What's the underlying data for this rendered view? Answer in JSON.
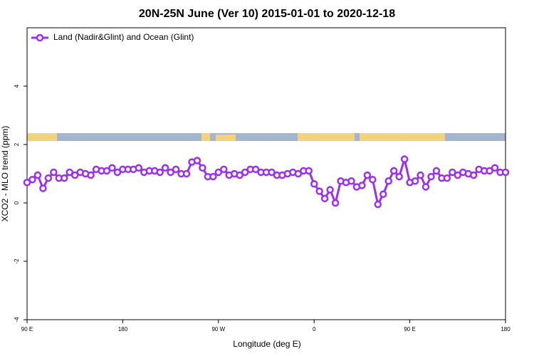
{
  "chart_data": {
    "type": "line",
    "title": "20N-25N June (Ver 10)   2015-01-01 to 2020-12-18",
    "x_label": "Longitude (deg E)",
    "y_label": "XCO2 - MLO trend (ppm)",
    "legend_position": "top-left",
    "x": [
      90,
      95,
      100,
      105,
      110,
      115,
      120,
      125,
      130,
      135,
      140,
      145,
      150,
      155,
      160,
      165,
      170,
      175,
      180,
      185,
      190,
      195,
      200,
      205,
      210,
      215,
      220,
      225,
      230,
      235,
      240,
      245,
      250,
      255,
      260,
      265,
      270,
      275,
      280,
      285,
      290,
      295,
      300,
      305,
      310,
      315,
      320,
      325,
      330,
      335,
      340,
      345,
      350,
      355,
      360,
      365,
      370,
      375,
      380,
      385,
      390,
      395,
      400,
      405,
      410,
      415,
      420,
      425,
      430,
      435,
      440,
      445,
      450,
      455,
      460,
      465,
      470,
      475,
      480,
      485,
      490,
      495,
      500,
      505,
      510,
      515,
      520,
      525,
      530,
      535,
      540
    ],
    "series": [
      {
        "name": "Land (Nadir&Glint) and Ocean (Glint)",
        "color": "#9b30f0",
        "values": [
          0.7,
          0.8,
          0.95,
          0.5,
          0.85,
          1.05,
          0.85,
          0.85,
          1.05,
          0.95,
          1.05,
          1.0,
          0.95,
          1.15,
          1.1,
          1.1,
          1.2,
          1.05,
          1.15,
          1.15,
          1.15,
          1.2,
          1.05,
          1.1,
          1.1,
          1.05,
          1.2,
          1.05,
          1.15,
          1.0,
          1.0,
          1.4,
          1.45,
          1.2,
          0.9,
          0.9,
          1.05,
          1.15,
          0.95,
          1.0,
          0.95,
          1.05,
          1.15,
          1.15,
          1.05,
          1.05,
          1.05,
          0.95,
          0.95,
          1.0,
          1.05,
          1.0,
          1.1,
          1.1,
          0.65,
          0.4,
          0.15,
          0.45,
          0.0,
          0.75,
          0.7,
          0.75,
          0.55,
          0.6,
          0.95,
          0.8,
          -0.05,
          0.3,
          0.75,
          1.1,
          0.9,
          1.5,
          0.7,
          0.75,
          0.95,
          0.55,
          0.9,
          1.1,
          0.85,
          0.85,
          1.05,
          0.95,
          1.05,
          1.0,
          0.95,
          1.15,
          1.1,
          1.1,
          1.2,
          1.05,
          1.05
        ]
      }
    ],
    "xlim": [
      90,
      540
    ],
    "xticks": [
      {
        "value": 90,
        "label": "90 E"
      },
      180,
      {
        "value": 270,
        "label": "90 W"
      },
      {
        "value": 360,
        "label": "0"
      },
      {
        "value": 450,
        "label": "90 E"
      },
      180
    ],
    "ylim": [
      -4,
      6
    ],
    "yticks": [
      -4,
      -2,
      0,
      2,
      4
    ]
  }
}
